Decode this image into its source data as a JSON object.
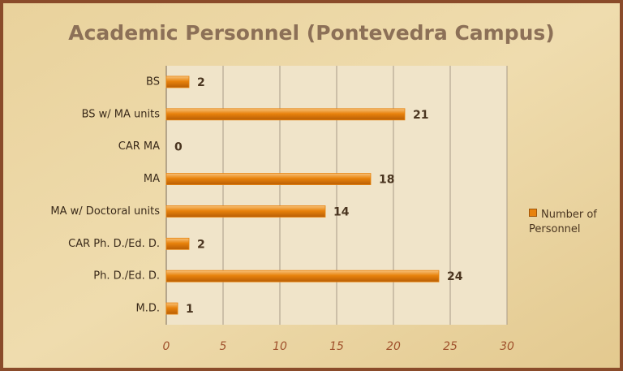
{
  "chart_data": {
    "type": "bar",
    "orientation": "horizontal",
    "title": "Academic Personnel (Pontevedra Campus)",
    "categories": [
      "BS",
      "BS w/ MA units",
      "CAR MA",
      "MA",
      "MA w/ Doctoral units",
      "CAR Ph. D./Ed. D.",
      "Ph. D./Ed. D.",
      "M.D."
    ],
    "series": [
      {
        "name": "Number of Personnel",
        "color": "#e8820c",
        "values": [
          2,
          21,
          0,
          18,
          14,
          2,
          24,
          1
        ]
      }
    ],
    "xlim": [
      0,
      30
    ],
    "xticks": [
      0,
      5,
      10,
      15,
      20,
      25,
      30
    ],
    "grid": true,
    "legend": "right"
  }
}
